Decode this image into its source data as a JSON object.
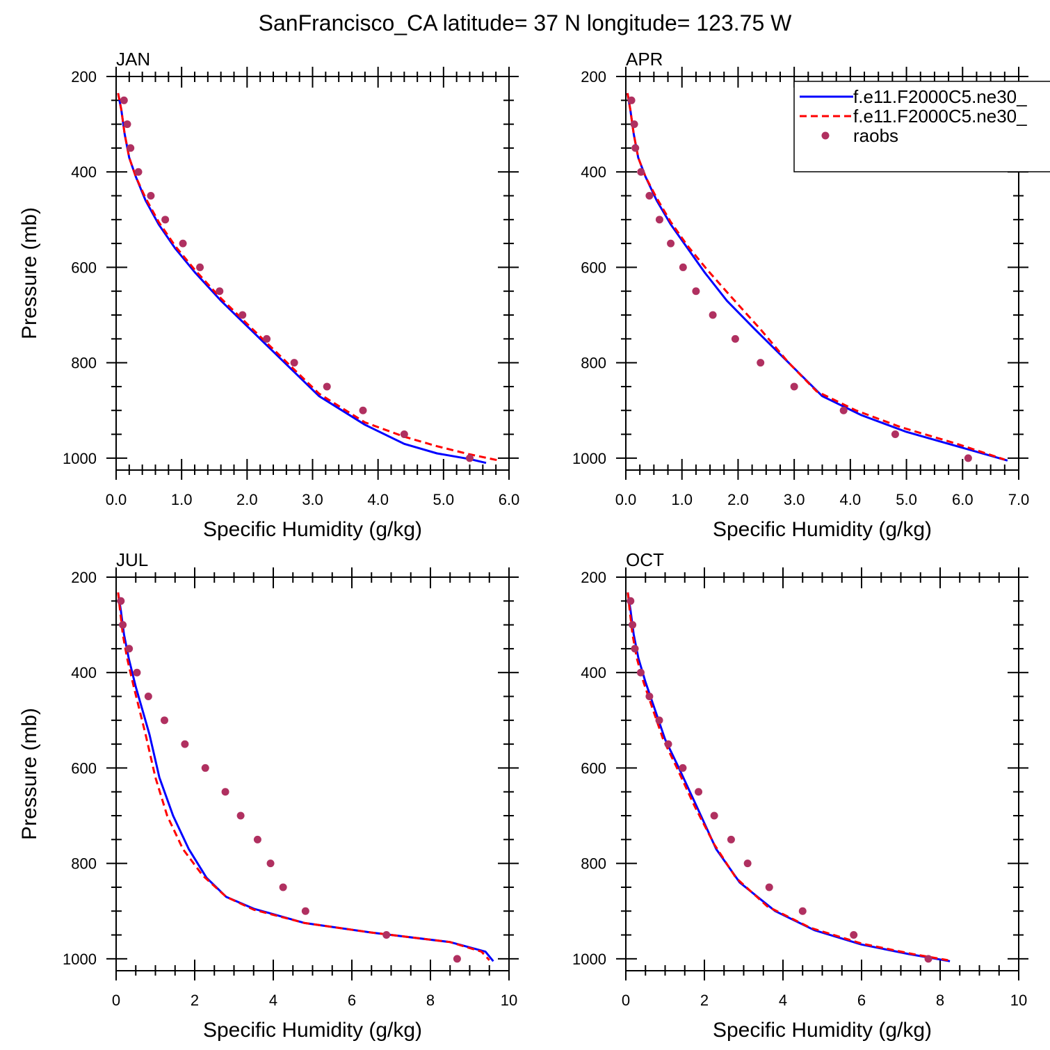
{
  "title": "SanFrancisco_CA  latitude= 37 N longitude= 123.75 W",
  "legend": {
    "items": [
      {
        "label": "f.e11.F2000C5.ne30_",
        "style": "solid",
        "color": "#0000ff"
      },
      {
        "label": "f.e11.F2000C5.ne30_",
        "style": "dashed",
        "color": "#ff0000"
      },
      {
        "label": "raobs",
        "style": "dot",
        "color": "#b03060"
      }
    ]
  },
  "chart_data": [
    {
      "type": "line",
      "panel": "JAN",
      "title": "JAN",
      "xlabel": "Specific Humidity (g/kg)",
      "ylabel": "Pressure (mb)",
      "xlim": [
        0,
        6
      ],
      "ylim": [
        1025,
        200
      ],
      "xticks": [
        0,
        1,
        2,
        3,
        4,
        5,
        6
      ],
      "xtick_labels": [
        "0.0",
        "1.0",
        "2.0",
        "3.0",
        "4.0",
        "5.0",
        "6.0"
      ],
      "yticks": [
        200,
        400,
        600,
        800,
        1000
      ],
      "series": [
        {
          "name": "f.e11.F2000C5.ne30_ (solid)",
          "x": [
            0.03,
            0.08,
            0.13,
            0.2,
            0.3,
            0.45,
            0.65,
            0.9,
            1.2,
            1.6,
            2.05,
            2.5,
            3.1,
            3.8,
            4.4,
            4.9,
            5.4,
            5.65
          ],
          "y": [
            235,
            270,
            320,
            370,
            410,
            460,
            510,
            560,
            610,
            670,
            730,
            790,
            870,
            930,
            970,
            990,
            1002,
            1010
          ]
        },
        {
          "name": "f.e11.F2000C5.ne30_ (dashed)",
          "x": [
            0.03,
            0.08,
            0.13,
            0.2,
            0.3,
            0.45,
            0.65,
            0.9,
            1.2,
            1.6,
            2.05,
            2.5,
            3.1,
            3.8,
            4.4,
            4.9,
            5.4,
            5.85
          ],
          "y": [
            235,
            270,
            320,
            370,
            410,
            455,
            505,
            555,
            605,
            665,
            725,
            785,
            865,
            925,
            955,
            975,
            992,
            1005
          ]
        },
        {
          "name": "raobs",
          "x": [
            0.12,
            0.17,
            0.22,
            0.34,
            0.53,
            0.75,
            1.02,
            1.28,
            1.58,
            1.93,
            2.3,
            2.72,
            3.22,
            3.77,
            4.4,
            5.4
          ],
          "y": [
            250,
            300,
            350,
            400,
            450,
            500,
            550,
            600,
            650,
            700,
            750,
            800,
            850,
            900,
            950,
            1000
          ]
        }
      ]
    },
    {
      "type": "line",
      "panel": "APR",
      "title": "APR",
      "xlabel": "Specific Humidity (g/kg)",
      "ylabel": "",
      "xlim": [
        0,
        7
      ],
      "ylim": [
        1025,
        200
      ],
      "xticks": [
        0,
        1,
        2,
        3,
        4,
        5,
        6,
        7
      ],
      "xtick_labels": [
        "0.0",
        "1.0",
        "2.0",
        "3.0",
        "4.0",
        "5.0",
        "6.0",
        "7.0"
      ],
      "yticks": [
        200,
        400,
        600,
        800,
        1000
      ],
      "series": [
        {
          "name": "f.e11.F2000C5.ne30_ (solid)",
          "x": [
            0.03,
            0.08,
            0.14,
            0.22,
            0.35,
            0.55,
            0.8,
            1.1,
            1.4,
            1.8,
            2.3,
            2.9,
            3.5,
            4.2,
            5.0,
            5.9,
            6.8
          ],
          "y": [
            235,
            270,
            320,
            370,
            410,
            460,
            510,
            560,
            610,
            670,
            730,
            800,
            870,
            910,
            945,
            975,
            1005
          ]
        },
        {
          "name": "f.e11.F2000C5.ne30_ (dashed)",
          "x": [
            0.03,
            0.08,
            0.14,
            0.22,
            0.35,
            0.55,
            0.8,
            1.1,
            1.45,
            1.9,
            2.4,
            2.9,
            3.4,
            4.1,
            4.9,
            5.9,
            6.75
          ],
          "y": [
            235,
            270,
            320,
            370,
            410,
            455,
            505,
            555,
            605,
            665,
            730,
            800,
            860,
            900,
            935,
            970,
            1003
          ]
        },
        {
          "name": "raobs",
          "x": [
            0.1,
            0.15,
            0.17,
            0.27,
            0.42,
            0.6,
            0.8,
            1.02,
            1.25,
            1.55,
            1.95,
            2.4,
            3.0,
            3.88,
            4.8,
            6.1
          ],
          "y": [
            250,
            300,
            350,
            400,
            450,
            500,
            550,
            600,
            650,
            700,
            750,
            800,
            850,
            900,
            950,
            1000
          ]
        }
      ]
    },
    {
      "type": "line",
      "panel": "JUL",
      "title": "JUL",
      "xlabel": "Specific Humidity (g/kg)",
      "ylabel": "Pressure (mb)",
      "xlim": [
        0,
        10
      ],
      "ylim": [
        1025,
        200
      ],
      "xticks": [
        0,
        2,
        4,
        6,
        8,
        10
      ],
      "xtick_labels": [
        "0",
        "2",
        "4",
        "6",
        "8",
        "10"
      ],
      "yticks": [
        200,
        400,
        600,
        800,
        1000
      ],
      "series": [
        {
          "name": "f.e11.F2000C5.ne30_ (solid)",
          "x": [
            0.05,
            0.12,
            0.2,
            0.32,
            0.5,
            0.85,
            1.1,
            1.45,
            1.85,
            2.3,
            2.8,
            3.5,
            4.8,
            6.5,
            8.5,
            9.4,
            9.6
          ],
          "y": [
            232,
            270,
            320,
            370,
            430,
            530,
            620,
            700,
            770,
            830,
            870,
            895,
            925,
            945,
            965,
            985,
            1005
          ]
        },
        {
          "name": "f.e11.F2000C5.ne30_ (dashed)",
          "x": [
            0.05,
            0.1,
            0.17,
            0.28,
            0.45,
            0.75,
            1.0,
            1.3,
            1.7,
            2.2,
            2.8,
            3.5,
            4.8,
            6.5,
            8.5,
            9.3,
            9.5
          ],
          "y": [
            232,
            270,
            320,
            370,
            430,
            530,
            620,
            700,
            770,
            825,
            870,
            897,
            925,
            945,
            965,
            985,
            1003
          ]
        },
        {
          "name": "raobs",
          "x": [
            0.12,
            0.17,
            0.33,
            0.53,
            0.82,
            1.23,
            1.75,
            2.27,
            2.78,
            3.17,
            3.6,
            3.93,
            4.25,
            4.82,
            6.88,
            8.68
          ],
          "y": [
            250,
            300,
            350,
            400,
            450,
            500,
            550,
            600,
            650,
            700,
            750,
            800,
            850,
            900,
            950,
            1000
          ]
        }
      ]
    },
    {
      "type": "line",
      "panel": "OCT",
      "title": "OCT",
      "xlabel": "Specific Humidity (g/kg)",
      "ylabel": "",
      "xlim": [
        0,
        10
      ],
      "ylim": [
        1025,
        200
      ],
      "xticks": [
        0,
        2,
        4,
        6,
        8,
        10
      ],
      "xtick_labels": [
        "0",
        "2",
        "4",
        "6",
        "8",
        "10"
      ],
      "yticks": [
        200,
        400,
        600,
        800,
        1000
      ],
      "series": [
        {
          "name": "f.e11.F2000C5.ne30_ (solid)",
          "x": [
            0.05,
            0.12,
            0.2,
            0.32,
            0.5,
            0.75,
            1.0,
            1.35,
            1.8,
            2.3,
            2.9,
            3.8,
            4.8,
            6.0,
            7.2,
            8.25
          ],
          "y": [
            232,
            270,
            320,
            370,
            420,
            480,
            540,
            600,
            680,
            770,
            840,
            900,
            940,
            970,
            990,
            1005
          ]
        },
        {
          "name": "f.e11.F2000C5.ne30_ (dashed)",
          "x": [
            0.05,
            0.1,
            0.17,
            0.28,
            0.45,
            0.7,
            0.95,
            1.3,
            1.75,
            2.25,
            2.8,
            3.6,
            4.7,
            6.0,
            7.3,
            8.2
          ],
          "y": [
            232,
            270,
            320,
            370,
            420,
            480,
            540,
            600,
            680,
            760,
            830,
            890,
            935,
            968,
            990,
            1003
          ]
        },
        {
          "name": "raobs",
          "x": [
            0.12,
            0.17,
            0.23,
            0.38,
            0.6,
            0.85,
            1.08,
            1.45,
            1.85,
            2.25,
            2.68,
            3.1,
            3.65,
            4.5,
            5.8,
            7.7
          ],
          "y": [
            250,
            300,
            350,
            400,
            450,
            500,
            550,
            600,
            650,
            700,
            750,
            800,
            850,
            900,
            950,
            1000
          ]
        }
      ]
    }
  ]
}
